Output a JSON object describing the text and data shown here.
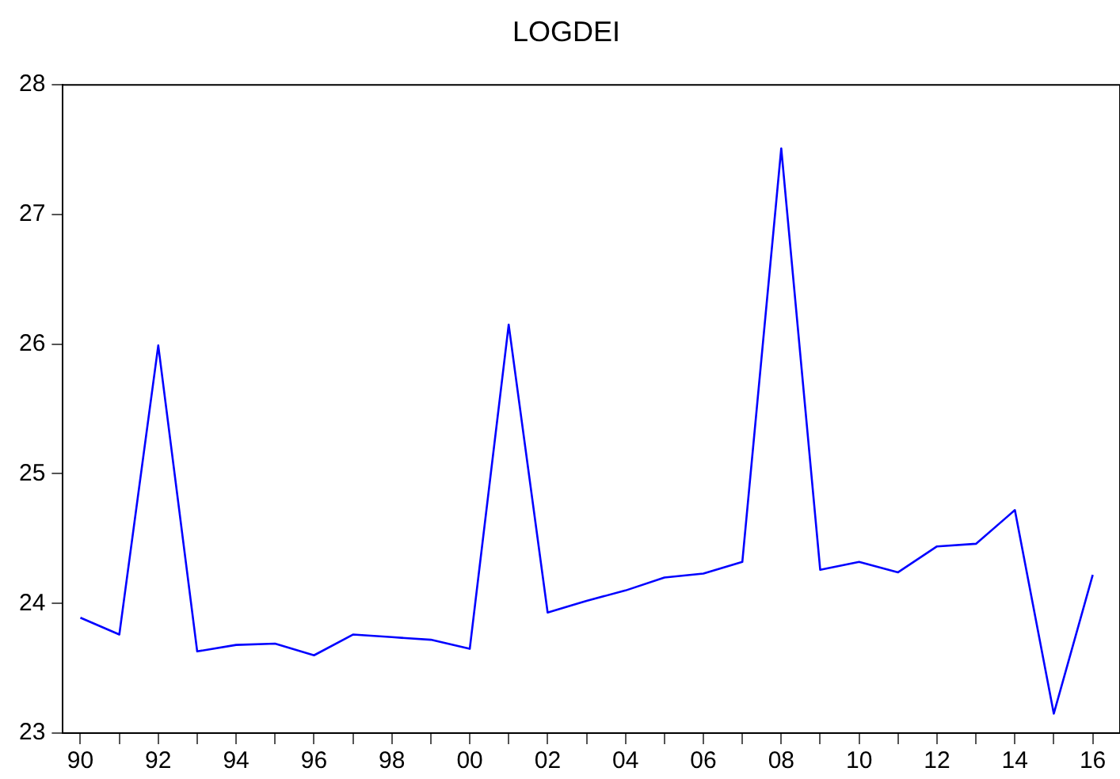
{
  "chart_data": {
    "type": "line",
    "title": "LOGDEI",
    "x": [
      1990,
      1991,
      1992,
      1993,
      1994,
      1995,
      1996,
      1997,
      1998,
      1999,
      2000,
      2001,
      2002,
      2003,
      2004,
      2005,
      2006,
      2007,
      2008,
      2009,
      2010,
      2011,
      2012,
      2013,
      2014,
      2015,
      2016
    ],
    "series": [
      {
        "color": "#0000ff",
        "values": [
          23.89,
          23.76,
          25.99,
          23.63,
          23.68,
          23.69,
          23.6,
          23.76,
          23.74,
          23.72,
          23.65,
          26.15,
          23.93,
          24.02,
          24.1,
          24.2,
          24.23,
          24.32,
          27.51,
          24.26,
          24.32,
          24.24,
          24.44,
          24.46,
          24.72,
          23.15,
          24.22
        ]
      }
    ],
    "xlim": [
      1989.55,
      2016.7
    ],
    "xticks": [
      {
        "value": 1990,
        "label": "90"
      },
      {
        "value": 1991,
        "label": null
      },
      {
        "value": 1992,
        "label": "92"
      },
      {
        "value": 1993,
        "label": null
      },
      {
        "value": 1994,
        "label": "94"
      },
      {
        "value": 1995,
        "label": null
      },
      {
        "value": 1996,
        "label": "96"
      },
      {
        "value": 1997,
        "label": null
      },
      {
        "value": 1998,
        "label": "98"
      },
      {
        "value": 1999,
        "label": null
      },
      {
        "value": 2000,
        "label": "00"
      },
      {
        "value": 2001,
        "label": null
      },
      {
        "value": 2002,
        "label": "02"
      },
      {
        "value": 2003,
        "label": null
      },
      {
        "value": 2004,
        "label": "04"
      },
      {
        "value": 2005,
        "label": null
      },
      {
        "value": 2006,
        "label": "06"
      },
      {
        "value": 2007,
        "label": null
      },
      {
        "value": 2008,
        "label": "08"
      },
      {
        "value": 2009,
        "label": null
      },
      {
        "value": 2010,
        "label": "10"
      },
      {
        "value": 2011,
        "label": null
      },
      {
        "value": 2012,
        "label": "12"
      },
      {
        "value": 2013,
        "label": null
      },
      {
        "value": 2014,
        "label": "14"
      },
      {
        "value": 2015,
        "label": null
      },
      {
        "value": 2016,
        "label": "16"
      }
    ],
    "ylim": [
      23,
      28
    ],
    "yticks": [
      23,
      24,
      25,
      26,
      27,
      28
    ],
    "grid": false,
    "legend": false,
    "marker": "none",
    "line_style": "solid"
  }
}
